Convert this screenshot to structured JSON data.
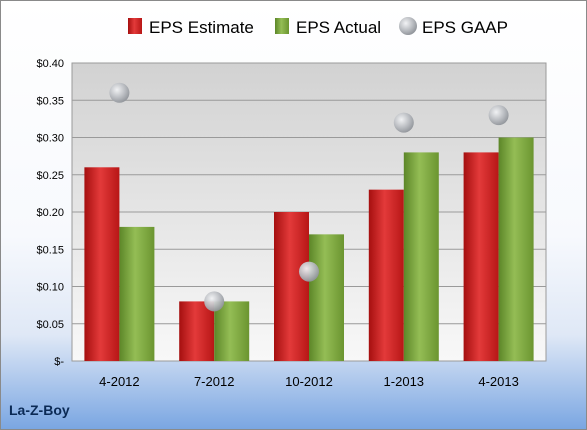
{
  "company": "La-Z-Boy",
  "chart_data": {
    "type": "bar",
    "categories": [
      "4-2012",
      "7-2012",
      "10-2012",
      "1-2013",
      "4-2013"
    ],
    "series": [
      {
        "name": "EPS Estimate",
        "kind": "bar",
        "color": "#cc1f1f",
        "values": [
          0.26,
          0.08,
          0.2,
          0.23,
          0.28
        ]
      },
      {
        "name": "EPS Actual",
        "kind": "bar",
        "color": "#7aa23a",
        "values": [
          0.18,
          0.08,
          0.17,
          0.28,
          0.3
        ]
      },
      {
        "name": "EPS GAAP",
        "kind": "marker",
        "color": "#b9bcc2",
        "values": [
          0.36,
          0.08,
          0.12,
          0.32,
          0.33
        ]
      }
    ],
    "y_ticks": [
      {
        "value": 0.4,
        "label": "$0.40"
      },
      {
        "value": 0.35,
        "label": "$0.35"
      },
      {
        "value": 0.3,
        "label": "$0.30"
      },
      {
        "value": 0.25,
        "label": "$0.25"
      },
      {
        "value": 0.2,
        "label": "$0.20"
      },
      {
        "value": 0.15,
        "label": "$0.15"
      },
      {
        "value": 0.1,
        "label": "$0.10"
      },
      {
        "value": 0.05,
        "label": "$0.05"
      },
      {
        "value": 0.0,
        "label": "$-"
      }
    ],
    "ylim": [
      0,
      0.4
    ],
    "grid": true,
    "legend_position": "top"
  }
}
